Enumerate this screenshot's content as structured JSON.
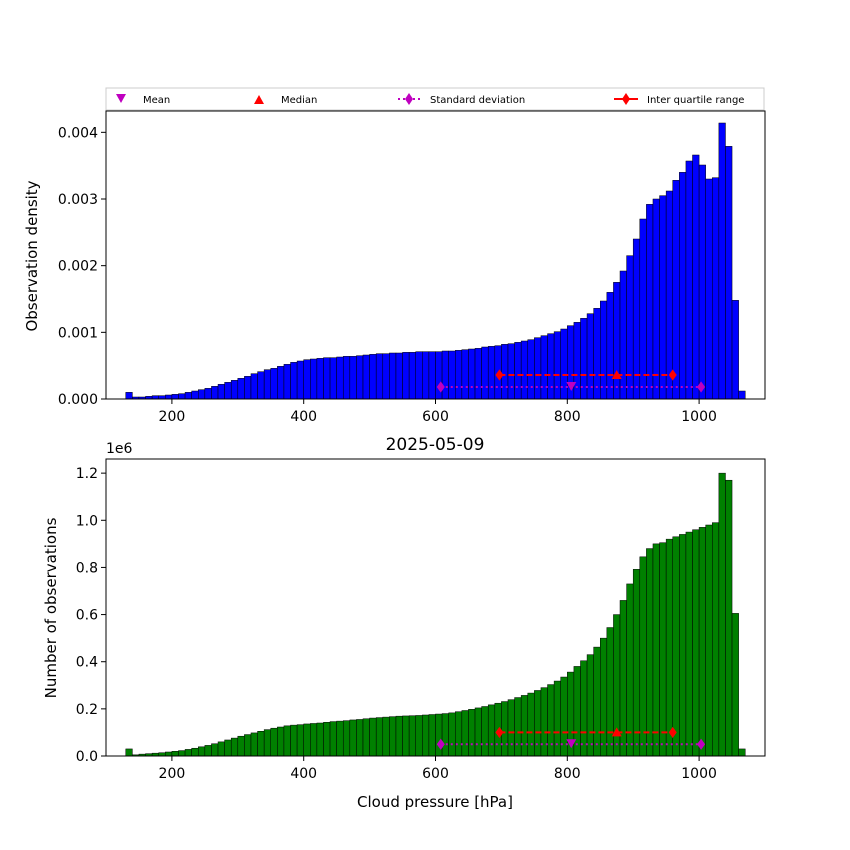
{
  "colors": {
    "density_bars": "#0000ff",
    "count_bars": "#008000",
    "bar_edge": "#000000",
    "mean_marker": "#bf00bf",
    "median_marker": "#ff0000",
    "std_marker": "#bf00bf",
    "iqr_marker": "#ff0000"
  },
  "legend": {
    "placement": "above-top-plot",
    "items": [
      "Mean",
      "Median",
      "Standard deviation",
      "Inter quartile range"
    ]
  },
  "chart_data": [
    {
      "type": "bar",
      "title": "",
      "xlabel": "",
      "ylabel": "Observation density",
      "xlim": [
        100,
        1100
      ],
      "ylim": [
        0,
        0.00432
      ],
      "xticks": [
        200,
        400,
        600,
        800,
        1000
      ],
      "yticks": [
        0.0,
        0.001,
        0.002,
        0.003,
        0.004
      ],
      "ytick_labels": [
        "0.000",
        "0.001",
        "0.002",
        "0.003",
        "0.004"
      ],
      "bin_start": 130,
      "bin_width": 10,
      "values": [
        0.0001,
        3e-05,
        3e-05,
        4e-05,
        5e-05,
        5e-05,
        6e-05,
        7e-05,
        8e-05,
        0.0001,
        0.00012,
        0.00014,
        0.00016,
        0.00019,
        0.00022,
        0.00025,
        0.00028,
        0.00031,
        0.00034,
        0.00038,
        0.00041,
        0.00044,
        0.00046,
        0.00049,
        0.00052,
        0.00055,
        0.00057,
        0.00059,
        0.0006,
        0.00061,
        0.00062,
        0.00062,
        0.00063,
        0.00064,
        0.00064,
        0.00065,
        0.00066,
        0.00067,
        0.00068,
        0.00068,
        0.00069,
        0.00069,
        0.0007,
        0.0007,
        0.00071,
        0.00071,
        0.00071,
        0.00071,
        0.00072,
        0.00072,
        0.00073,
        0.00074,
        0.00075,
        0.00076,
        0.00078,
        0.00079,
        0.0008,
        0.00082,
        0.00083,
        0.00085,
        0.00087,
        0.00089,
        0.00092,
        0.00095,
        0.00098,
        0.00101,
        0.00105,
        0.0011,
        0.00115,
        0.00121,
        0.00128,
        0.00136,
        0.00147,
        0.0016,
        0.00175,
        0.00192,
        0.00215,
        0.0024,
        0.0027,
        0.00292,
        0.003,
        0.00305,
        0.00312,
        0.00328,
        0.0034,
        0.00357,
        0.00366,
        0.00351,
        0.0033,
        0.00332,
        0.00414,
        0.00379,
        0.00148,
        0.00012
      ],
      "stats": {
        "mean": 806,
        "median": 875,
        "std_range": [
          608,
          1003
        ],
        "iqr_range": [
          697,
          960
        ],
        "mean_y": 0.00018,
        "median_y": 0.00036,
        "std_y": 0.00018,
        "iqr_y": 0.00036
      }
    },
    {
      "type": "bar",
      "title": "2025-05-09",
      "xlabel": "Cloud pressure [hPa]",
      "ylabel": "Number of observations",
      "offset_text": "1e6",
      "xlim": [
        100,
        1100
      ],
      "ylim": [
        0,
        1.26
      ],
      "xticks": [
        200,
        400,
        600,
        800,
        1000
      ],
      "yticks": [
        0.0,
        0.2,
        0.4,
        0.6,
        0.8,
        1.0,
        1.2
      ],
      "ytick_labels": [
        "0.0",
        "0.2",
        "0.4",
        "0.6",
        "0.8",
        "1.0",
        "1.2"
      ],
      "bin_start": 130,
      "bin_width": 10,
      "values": [
        0.03,
        0.005,
        0.008,
        0.01,
        0.012,
        0.014,
        0.017,
        0.02,
        0.023,
        0.028,
        0.033,
        0.039,
        0.045,
        0.052,
        0.06,
        0.068,
        0.076,
        0.084,
        0.091,
        0.098,
        0.105,
        0.112,
        0.118,
        0.123,
        0.128,
        0.131,
        0.133,
        0.136,
        0.138,
        0.14,
        0.143,
        0.146,
        0.148,
        0.15,
        0.153,
        0.155,
        0.158,
        0.161,
        0.163,
        0.165,
        0.167,
        0.169,
        0.17,
        0.171,
        0.172,
        0.174,
        0.176,
        0.178,
        0.18,
        0.183,
        0.188,
        0.193,
        0.198,
        0.204,
        0.21,
        0.217,
        0.224,
        0.231,
        0.239,
        0.248,
        0.257,
        0.267,
        0.278,
        0.29,
        0.303,
        0.318,
        0.335,
        0.356,
        0.38,
        0.404,
        0.43,
        0.462,
        0.5,
        0.545,
        0.6,
        0.66,
        0.73,
        0.792,
        0.845,
        0.88,
        0.9,
        0.905,
        0.92,
        0.93,
        0.94,
        0.95,
        0.96,
        0.97,
        0.98,
        0.99,
        1.2,
        1.17,
        0.605,
        0.03
      ],
      "stats": {
        "mean": 806,
        "median": 875,
        "std_range": [
          608,
          1003
        ],
        "iqr_range": [
          697,
          960
        ],
        "mean_y": 0.05,
        "median_y": 0.1,
        "std_y": 0.05,
        "iqr_y": 0.1
      }
    }
  ]
}
